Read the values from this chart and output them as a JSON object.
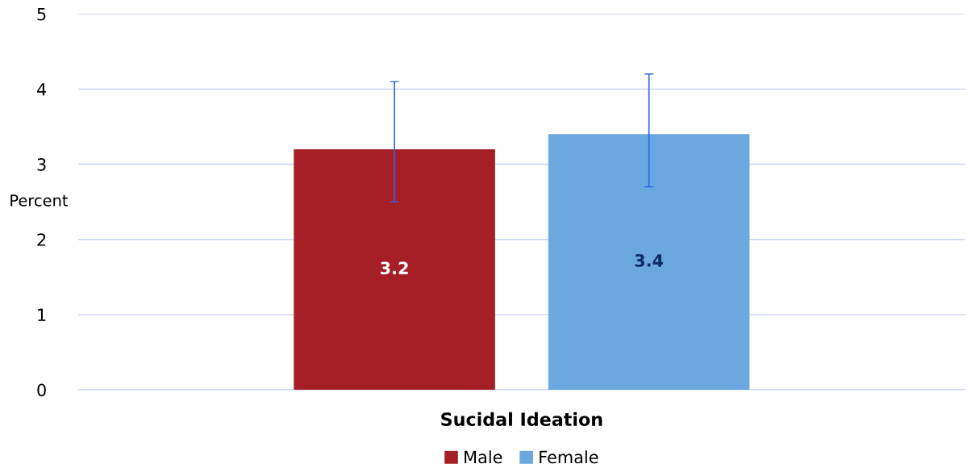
{
  "chart_data": {
    "type": "bar",
    "ylabel": "Percent",
    "categories": [
      "Sucidal Ideation"
    ],
    "series": [
      {
        "name": "Male",
        "color": "#a61f27",
        "values": [
          3.2
        ],
        "errors": [
          [
            2.5,
            4.1
          ]
        ]
      },
      {
        "name": "Female",
        "color": "#6ca8e0",
        "values": [
          3.4
        ],
        "errors": [
          [
            2.7,
            4.2
          ]
        ]
      }
    ],
    "ylim": [
      0,
      5
    ],
    "yticks": [
      0,
      1,
      2,
      3,
      4,
      5
    ],
    "grid": "y",
    "legend": "bottom",
    "data_labels": true
  }
}
